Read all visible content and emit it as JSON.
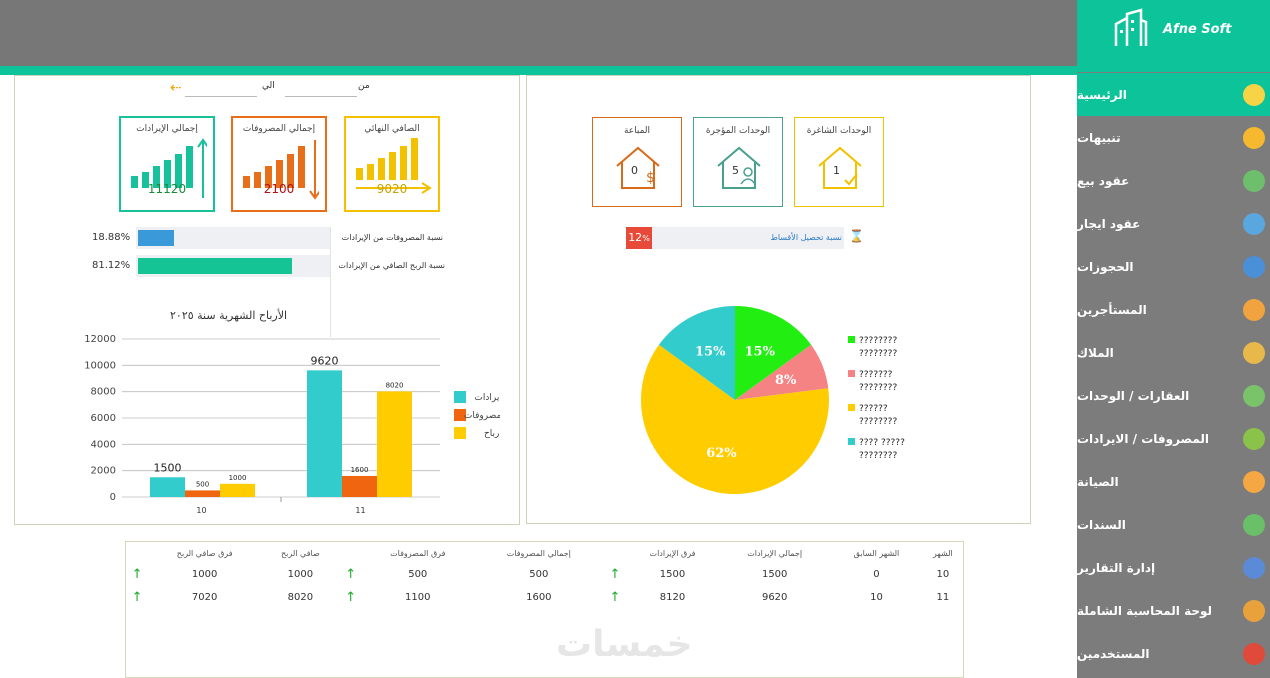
{
  "brand": "Afne Soft",
  "nav": [
    {
      "label": "الرئيسية",
      "icon": "lightbulb-icon",
      "color": "#f6d445",
      "active": true
    },
    {
      "label": "تنبيهات",
      "icon": "bell-icon",
      "color": "#f5b82e"
    },
    {
      "label": "عقود بيع",
      "icon": "calculator-money-icon",
      "color": "#6dbf6d"
    },
    {
      "label": "عقود ايجار",
      "icon": "calculator-icon",
      "color": "#5aa7e0"
    },
    {
      "label": "الحجوزات",
      "icon": "clock-icon",
      "color": "#4a90d9"
    },
    {
      "label": "المستأجرين",
      "icon": "hand-money-icon",
      "color": "#f1a340"
    },
    {
      "label": "الملاك",
      "icon": "money-bag-icon",
      "color": "#e8b84a"
    },
    {
      "label": "العقارات / الوحدات",
      "icon": "map-phone-icon",
      "color": "#7ac36a"
    },
    {
      "label": "المصروفات / الايرادات",
      "icon": "cash-hand-icon",
      "color": "#8bc34a"
    },
    {
      "label": "الصيانة",
      "icon": "worker-icon",
      "color": "#f4a742"
    },
    {
      "label": "السندات",
      "icon": "receipt-icon",
      "color": "#6abf69"
    },
    {
      "label": "إدارة التقارير",
      "icon": "users-report-icon",
      "color": "#5b8bd6"
    },
    {
      "label": "لوحة المحاسبة الشاملة",
      "icon": "chart-pie-icon",
      "color": "#e9a23b"
    },
    {
      "label": "المستخدمين",
      "icon": "user-pin-icon",
      "color": "#e04a3a"
    }
  ],
  "filter": {
    "from_label": "من",
    "to_label": "الي"
  },
  "kpis": [
    {
      "title": "إجمالي الإيرادات",
      "value": "11120",
      "color": "#16c19c",
      "valueColor": "#1a8a3a"
    },
    {
      "title": "إجمالي المصروفات",
      "value": "2100",
      "color": "#e76f1a",
      "valueColor": "#b01010"
    },
    {
      "title": "الصافي النهائي",
      "value": "9020",
      "color": "#f2c100",
      "valueColor": "#c9a300"
    }
  ],
  "ratios": [
    {
      "label": "نسبة المصروفات من الإيرادات",
      "value": "18.88%",
      "fraction": 0.1888,
      "color": "#3a9ad9"
    },
    {
      "label": "نسبة الربح الصافي من الإيرادات",
      "value": "81.12%",
      "fraction": 0.8112,
      "color": "#14c494"
    }
  ],
  "chart_title": "الأرباح الشهرية سنة ٢٠٢٥",
  "chart_data": [
    {
      "type": "bar",
      "title": "الأرباح الشهرية سنة ٢٠٢٥",
      "categories": [
        "10",
        "11"
      ],
      "series": [
        {
          "name": "الايرادات",
          "color": "#33cccc",
          "values": [
            1500,
            9620
          ]
        },
        {
          "name": "المصروفات",
          "color": "#f0650f",
          "values": [
            500,
            1600
          ]
        },
        {
          "name": "الارباح",
          "color": "#ffcc00",
          "values": [
            1000,
            8020
          ]
        }
      ],
      "ylim": [
        0,
        12000
      ],
      "yticks": [
        0,
        2000,
        4000,
        6000,
        8000,
        10000,
        12000
      ],
      "grid": true,
      "legend": "right"
    },
    {
      "type": "pie",
      "slices": [
        {
          "name": "???????? ????????",
          "value": 15,
          "label": "15%",
          "color": "#22ee11"
        },
        {
          "name": "??????? ????????",
          "value": 8,
          "label": "8%",
          "color": "#f58383"
        },
        {
          "name": "?????? ????????",
          "value": 62,
          "label": "62%",
          "color": "#ffcc00"
        },
        {
          "name": "???? ????? ????????",
          "value": 15,
          "label": "15%",
          "color": "#33cccc"
        }
      ],
      "legend": "right"
    }
  ],
  "units": [
    {
      "title": "الوحدات الشاغرة",
      "value": "1",
      "color": "#f2c100"
    },
    {
      "title": "الوحدات المؤجرة",
      "value": "5",
      "color": "#4aa090"
    },
    {
      "title": "المباعة",
      "value": "0",
      "color": "#d86a1a"
    }
  ],
  "collect": {
    "label": "نسبة تحصيل الأقساط",
    "value": "12",
    "unit": "%"
  },
  "table": {
    "headers": [
      "الشهر",
      "الشهر السابق",
      "إجمالي الإيرادات",
      "فرق الإيرادات",
      "",
      "إجمالي المصروفات",
      "فرق المصروفات",
      "",
      "صافي الربح",
      "فرق صافي الربح",
      ""
    ],
    "rows": [
      [
        "10",
        "0",
        "1500",
        "1500",
        "↑",
        "500",
        "500",
        "↑",
        "1000",
        "1000",
        "↑"
      ],
      [
        "11",
        "10",
        "9620",
        "8120",
        "↑",
        "1600",
        "1100",
        "↑",
        "8020",
        "7020",
        "↑"
      ]
    ]
  },
  "watermark": "خمسات"
}
